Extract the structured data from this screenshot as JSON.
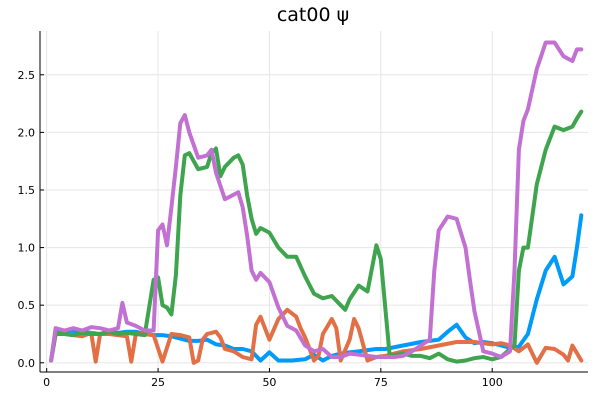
{
  "chart_data": {
    "type": "line",
    "title": "cat00 ψ",
    "xlabel": "",
    "ylabel": "",
    "xlim": [
      -1.5,
      121.5
    ],
    "ylim": [
      -0.08,
      2.88
    ],
    "xticks": [
      0,
      25,
      50,
      75,
      100
    ],
    "xtick_labels": [
      "0",
      "25",
      "50",
      "75",
      "100"
    ],
    "yticks": [
      0,
      0.5,
      1.0,
      1.5,
      2.0,
      2.5
    ],
    "ytick_labels": [
      "0.0",
      "0.5",
      "1.0",
      "1.5",
      "2.0",
      "2.5"
    ],
    "grid": true,
    "legend": "none",
    "series": [
      {
        "color": "#009af9",
        "x": [
          1,
          2,
          3,
          5,
          8,
          10,
          12,
          14,
          16,
          18,
          20,
          22,
          24,
          26,
          28,
          30,
          32,
          34,
          36,
          38,
          40,
          42,
          44,
          46,
          48,
          50,
          52,
          55,
          58,
          60,
          62,
          64,
          66,
          68,
          70,
          72,
          74,
          76,
          80,
          84,
          88,
          90,
          92,
          94,
          96,
          98,
          100,
          102,
          104,
          106,
          108,
          110,
          112,
          114,
          116,
          118,
          119,
          120
        ],
        "y": [
          0.02,
          0.28,
          0.27,
          0.28,
          0.27,
          0.26,
          0.25,
          0.27,
          0.26,
          0.27,
          0.27,
          0.25,
          0.24,
          0.24,
          0.23,
          0.21,
          0.19,
          0.19,
          0.2,
          0.16,
          0.15,
          0.12,
          0.12,
          0.1,
          0.02,
          0.09,
          0.02,
          0.02,
          0.03,
          0.07,
          0.02,
          0.06,
          0.08,
          0.09,
          0.1,
          0.11,
          0.12,
          0.12,
          0.15,
          0.18,
          0.2,
          0.27,
          0.33,
          0.22,
          0.17,
          0.18,
          0.17,
          0.15,
          0.13,
          0.14,
          0.25,
          0.55,
          0.8,
          0.92,
          0.68,
          0.75,
          1.0,
          1.28
        ]
      },
      {
        "color": "#e26f46",
        "x": [
          1,
          2,
          4,
          6,
          8,
          10,
          11,
          12,
          14,
          16,
          18,
          19,
          20,
          22,
          24,
          26,
          28,
          30,
          32,
          33,
          34,
          35,
          36,
          38,
          39,
          40,
          42,
          44,
          46,
          47,
          48,
          50,
          52,
          54,
          56,
          57,
          58,
          60,
          61,
          62,
          64,
          65,
          66,
          68,
          69,
          70,
          72,
          74,
          76,
          78,
          80,
          84,
          88,
          92,
          96,
          100,
          102,
          104,
          106,
          108,
          110,
          112,
          114,
          116,
          117,
          118,
          120
        ],
        "y": [
          0.02,
          0.25,
          0.25,
          0.24,
          0.23,
          0.26,
          0.01,
          0.25,
          0.25,
          0.24,
          0.23,
          0.01,
          0.25,
          0.25,
          0.24,
          0.01,
          0.25,
          0.24,
          0.22,
          0.0,
          0.02,
          0.2,
          0.25,
          0.27,
          0.22,
          0.12,
          0.1,
          0.05,
          0.03,
          0.33,
          0.4,
          0.2,
          0.38,
          0.46,
          0.4,
          0.3,
          0.22,
          0.02,
          0.06,
          0.25,
          0.38,
          0.3,
          0.02,
          0.2,
          0.38,
          0.3,
          0.02,
          0.05,
          0.06,
          0.08,
          0.1,
          0.12,
          0.15,
          0.18,
          0.18,
          0.16,
          0.17,
          0.15,
          0.1,
          0.16,
          0.0,
          0.13,
          0.12,
          0.07,
          0.02,
          0.15,
          0.02
        ]
      },
      {
        "color": "#3ea44e",
        "x": [
          1,
          2,
          4,
          6,
          8,
          10,
          12,
          14,
          16,
          18,
          20,
          22,
          24,
          25,
          26,
          27,
          28,
          29,
          30,
          31,
          32,
          34,
          36,
          37,
          38,
          39,
          40,
          42,
          43,
          44,
          45,
          46,
          47,
          48,
          50,
          52,
          54,
          56,
          58,
          60,
          62,
          64,
          66,
          67,
          68,
          70,
          72,
          74,
          75,
          77,
          80,
          82,
          84,
          86,
          88,
          90,
          92,
          94,
          96,
          98,
          100,
          102,
          104,
          105,
          106,
          107,
          108,
          110,
          112,
          114,
          116,
          118,
          119,
          120
        ],
        "y": [
          0.02,
          0.25,
          0.25,
          0.24,
          0.26,
          0.25,
          0.25,
          0.27,
          0.25,
          0.26,
          0.25,
          0.24,
          0.72,
          0.74,
          0.5,
          0.48,
          0.42,
          0.76,
          1.45,
          1.8,
          1.82,
          1.68,
          1.7,
          1.82,
          1.86,
          1.62,
          1.7,
          1.78,
          1.8,
          1.72,
          1.45,
          1.25,
          1.12,
          1.17,
          1.13,
          1.0,
          0.92,
          0.92,
          0.75,
          0.6,
          0.56,
          0.58,
          0.5,
          0.46,
          0.55,
          0.67,
          0.62,
          1.02,
          0.9,
          0.06,
          0.08,
          0.06,
          0.06,
          0.04,
          0.08,
          0.03,
          0.01,
          0.02,
          0.04,
          0.05,
          0.03,
          0.05,
          0.12,
          0.15,
          0.8,
          1.0,
          1.0,
          1.55,
          1.85,
          2.05,
          2.02,
          2.05,
          2.12,
          2.18
        ]
      },
      {
        "color": "#c271d2",
        "x": [
          1,
          2,
          4,
          6,
          8,
          10,
          12,
          14,
          16,
          17,
          18,
          20,
          22,
          24,
          25,
          26,
          27,
          28,
          29,
          30,
          31,
          32,
          34,
          36,
          37,
          38,
          40,
          42,
          43,
          44,
          45,
          46,
          47,
          48,
          50,
          52,
          54,
          56,
          58,
          60,
          62,
          64,
          66,
          68,
          70,
          72,
          74,
          76,
          78,
          80,
          82,
          84,
          86,
          87,
          88,
          90,
          92,
          94,
          95,
          96,
          98,
          100,
          102,
          104,
          105,
          106,
          107,
          108,
          110,
          112,
          114,
          116,
          118,
          119,
          120
        ],
        "y": [
          0.02,
          0.3,
          0.28,
          0.3,
          0.28,
          0.31,
          0.3,
          0.28,
          0.3,
          0.52,
          0.35,
          0.32,
          0.28,
          0.28,
          1.15,
          1.2,
          1.02,
          1.35,
          1.7,
          2.08,
          2.15,
          2.0,
          1.78,
          1.8,
          1.85,
          1.65,
          1.42,
          1.46,
          1.48,
          1.35,
          1.1,
          0.8,
          0.72,
          0.78,
          0.7,
          0.48,
          0.32,
          0.28,
          0.15,
          0.1,
          0.12,
          0.05,
          0.05,
          0.08,
          0.07,
          0.06,
          0.05,
          0.05,
          0.05,
          0.06,
          0.1,
          0.15,
          0.2,
          0.8,
          1.15,
          1.27,
          1.25,
          1.0,
          0.72,
          0.45,
          0.1,
          0.08,
          0.05,
          0.1,
          0.8,
          1.85,
          2.1,
          2.2,
          2.55,
          2.78,
          2.78,
          2.66,
          2.62,
          2.72,
          2.72
        ]
      }
    ]
  }
}
